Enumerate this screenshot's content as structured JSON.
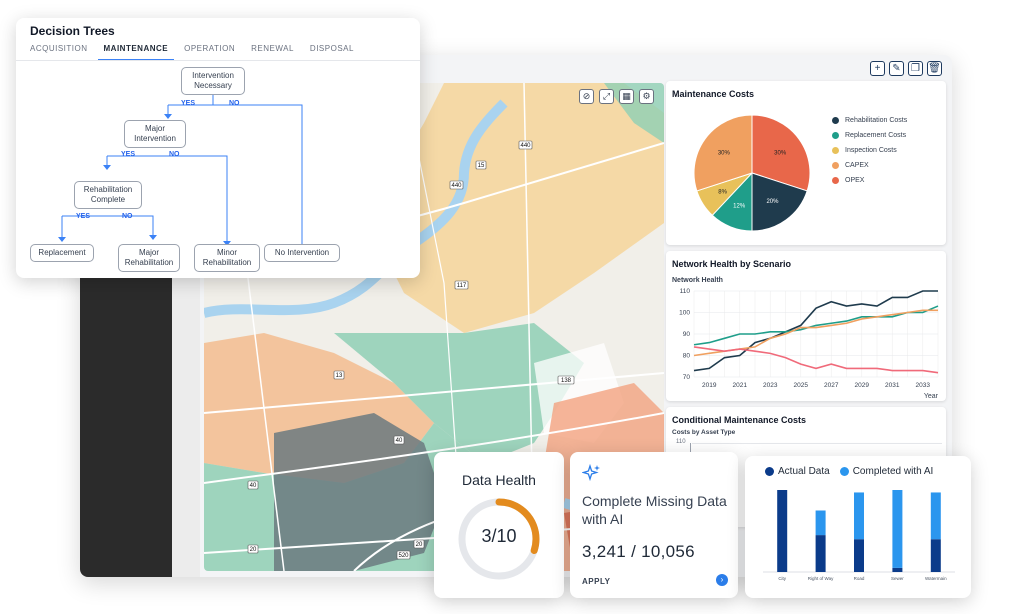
{
  "map": {
    "road_labels": [
      "440",
      "440",
      "15",
      "117",
      "13",
      "40",
      "40",
      "138",
      "520",
      "520",
      "20",
      "20",
      "20"
    ]
  },
  "maintenance_costs": {
    "title": "Maintenance Costs",
    "legend": [
      {
        "label": "Rehabilitation Costs",
        "color": "#1f3b4d"
      },
      {
        "label": "Replacement Costs",
        "color": "#1f9e8a"
      },
      {
        "label": "Inspection Costs",
        "color": "#e8c15a"
      },
      {
        "label": "CAPEX",
        "color": "#f0a060"
      },
      {
        "label": "OPEX",
        "color": "#e8674a"
      }
    ]
  },
  "network_health": {
    "title": "Network Health by Scenario",
    "ylabel": "Network Health",
    "xlabel": "Year"
  },
  "conditional_costs": {
    "title": "Conditional Maintenance Costs",
    "subtitle": "Costs by Asset Type",
    "first_tick": "110"
  },
  "decision_tree": {
    "title": "Decision Trees",
    "tabs": [
      "ACQUISITION",
      "MAINTENANCE",
      "OPERATION",
      "RENEWAL",
      "DISPOSAL"
    ],
    "active_tab": "MAINTENANCE",
    "nodes": {
      "intervention": "Intervention Necessary",
      "major_intervention": "Major Intervention",
      "rehab_complete": "Rehabilitation Complete",
      "replacement": "Replacement",
      "major_rehab": "Major Rehabilitation",
      "minor_rehab": "Minor Rehabilitation",
      "no_intervention": "No Intervention"
    },
    "yes": "YES",
    "no": "NO"
  },
  "data_health": {
    "title": "Data Health",
    "value_text": "3/10",
    "progress": 0.3,
    "color": "#e38b1e"
  },
  "ai_card": {
    "title": "Complete Missing Data with AI",
    "count": "3,241 / 10,056",
    "action": "APPLY",
    "icon": "sparkle-icon"
  },
  "chart_data": [
    {
      "type": "pie",
      "title": "Maintenance Costs",
      "slices": [
        {
          "label": "OPEX",
          "value": 30,
          "display": "30%",
          "color": "#e8674a"
        },
        {
          "label": "Rehabilitation Costs",
          "value": 20,
          "display": "20%",
          "color": "#1f3b4d"
        },
        {
          "label": "Replacement Costs",
          "value": 12,
          "display": "12%",
          "color": "#1f9e8a"
        },
        {
          "label": "Inspection Costs",
          "value": 8,
          "display": "8%",
          "color": "#e8c15a"
        },
        {
          "label": "CAPEX",
          "value": 30,
          "display": "30%",
          "color": "#f0a060"
        }
      ]
    },
    {
      "type": "line",
      "title": "Network Health by Scenario",
      "ylabel": "Network Health",
      "xlabel": "Year",
      "ylim": [
        70,
        110
      ],
      "yticks": [
        70,
        80,
        90,
        100,
        110
      ],
      "xticks": [
        2019,
        2021,
        2023,
        2025,
        2027,
        2029,
        2031,
        2033
      ],
      "xlim": [
        2018,
        2034
      ],
      "grid": true,
      "series": [
        {
          "color": "#1f3b4d",
          "x": [
            2018,
            2019,
            2020,
            2021,
            2022,
            2023,
            2024,
            2025,
            2026,
            2027,
            2028,
            2029,
            2030,
            2031,
            2032,
            2033,
            2034
          ],
          "values": [
            73,
            74,
            79,
            80,
            86,
            88,
            91,
            94,
            102,
            105,
            103,
            104,
            103,
            107,
            107,
            110,
            110
          ]
        },
        {
          "color": "#1f9e8a",
          "x": [
            2018,
            2019,
            2020,
            2021,
            2022,
            2023,
            2024,
            2025,
            2026,
            2027,
            2028,
            2029,
            2030,
            2031,
            2032,
            2033,
            2034
          ],
          "values": [
            85,
            86,
            88,
            90,
            90,
            91,
            91,
            92,
            94,
            95,
            96,
            98,
            98,
            98,
            100,
            100,
            103
          ]
        },
        {
          "color": "#f0a060",
          "x": [
            2018,
            2019,
            2020,
            2021,
            2022,
            2023,
            2024,
            2025,
            2026,
            2027,
            2028,
            2029,
            2030,
            2031,
            2032,
            2033,
            2034
          ],
          "values": [
            80,
            81,
            82,
            83,
            84,
            88,
            90,
            93,
            93,
            94,
            95,
            97,
            98,
            99,
            100,
            101,
            101
          ]
        },
        {
          "color": "#f06a7a",
          "x": [
            2018,
            2019,
            2020,
            2021,
            2022,
            2023,
            2024,
            2025,
            2026,
            2027,
            2028,
            2029,
            2030,
            2031,
            2032,
            2033,
            2034
          ],
          "values": [
            84,
            83,
            82,
            83,
            82,
            81,
            79,
            76,
            74,
            76,
            74,
            74,
            74,
            73,
            73,
            73,
            72
          ]
        }
      ]
    },
    {
      "type": "bar",
      "stacked": true,
      "legend": "top",
      "categories": [
        "City",
        "Right of Way",
        "Road",
        "Sewer",
        "Watermain"
      ],
      "series": [
        {
          "name": "Actual Data",
          "color": "#0b3b8a",
          "values": [
            100,
            45,
            40,
            5,
            40
          ]
        },
        {
          "name": "Completed with AI",
          "color": "#2b96ee",
          "values": [
            0,
            30,
            57,
            95,
            57
          ]
        }
      ],
      "ylim": [
        0,
        100
      ]
    }
  ]
}
